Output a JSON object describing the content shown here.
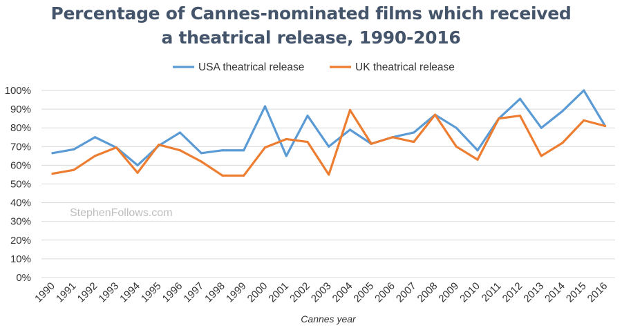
{
  "chart_data": {
    "type": "line",
    "title_lines": [
      "Percentage of Cannes-nominated films which received",
      "a theatrical release, 1990-2016"
    ],
    "xlabel": "Cannes year",
    "ylabel": "",
    "ylim": [
      0,
      100
    ],
    "y_ticks": [
      "0%",
      "10%",
      "20%",
      "30%",
      "40%",
      "50%",
      "60%",
      "70%",
      "80%",
      "90%",
      "100%"
    ],
    "grid": true,
    "legend_position": "top",
    "watermark": "StephenFollows.com",
    "categories": [
      "1990",
      "1991",
      "1992",
      "1993",
      "1994",
      "1995",
      "1996",
      "1997",
      "1998",
      "1999",
      "2000",
      "2001",
      "2002",
      "2003",
      "2004",
      "2005",
      "2006",
      "2007",
      "2008",
      "2009",
      "2010",
      "2011",
      "2012",
      "2013",
      "2014",
      "2015",
      "2016"
    ],
    "series": [
      {
        "name": "USA theatrical release",
        "color": "#5b9bd5",
        "values": [
          66.5,
          68.5,
          75,
          69.5,
          60,
          70.5,
          77.5,
          66.5,
          68,
          68,
          91.5,
          65,
          86.5,
          70,
          79,
          71.5,
          75,
          77.5,
          87,
          80,
          68,
          85,
          95.5,
          80,
          89,
          100,
          81
        ]
      },
      {
        "name": "UK theatrical release",
        "color": "#ed7d31",
        "values": [
          55.5,
          57.5,
          65,
          69.5,
          56,
          71,
          68,
          62,
          54.5,
          54.5,
          69.5,
          74,
          72.5,
          55,
          89.5,
          71.5,
          75,
          72.5,
          87,
          70,
          63,
          85,
          86.5,
          65,
          72,
          84,
          81
        ]
      }
    ]
  }
}
